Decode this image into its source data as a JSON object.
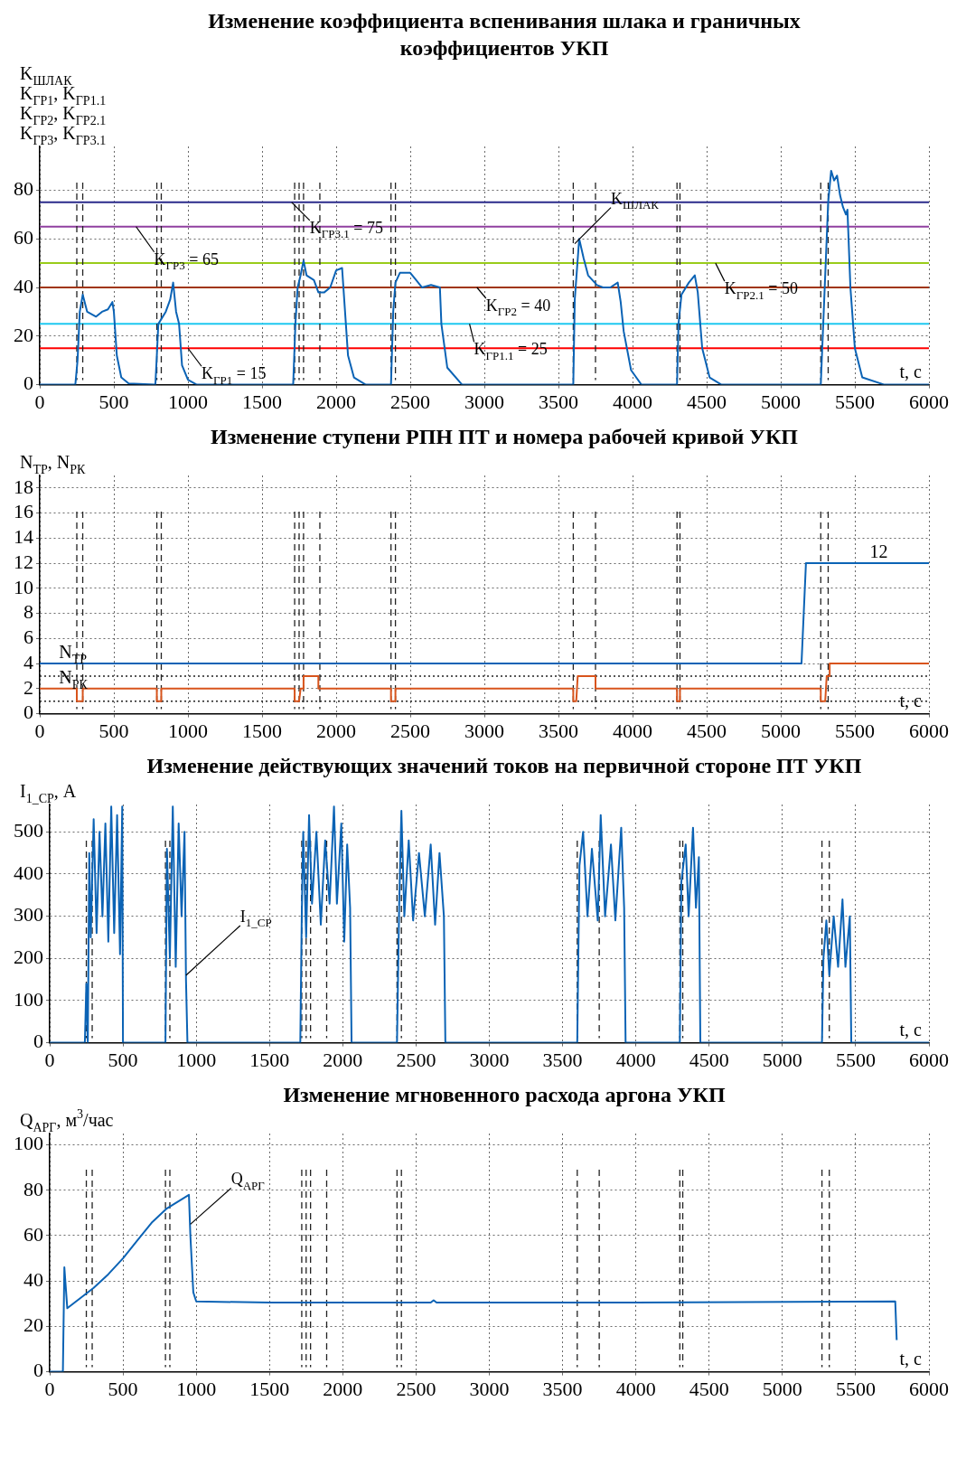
{
  "chart_data": [
    {
      "type": "line",
      "title": "Изменение коэффициента вспенивания шлака и граничных коэффициентов УКП",
      "ylabel": "K$_{ШЛАК}$\nK$_{ГР1}$, K$_{ГР1.1}$\nK$_{ГР2}$, K$_{ГР2.1}$\nK$_{ГР3}$, K$_{ГР3.1}$",
      "xlabel": "t, с",
      "xlim": [
        0,
        6000
      ],
      "xticks": [
        0,
        500,
        1000,
        1500,
        2000,
        2500,
        3000,
        3500,
        4000,
        4500,
        5000,
        5500,
        6000
      ],
      "ylim": [
        0,
        98
      ],
      "yticks": [
        0,
        20,
        40,
        60,
        80
      ],
      "grid": true,
      "series": [
        {
          "color": "#0b63b5",
          "x": [
            0,
            240,
            255,
            270,
            290,
            320,
            350,
            380,
            420,
            460,
            490,
            500,
            520,
            550,
            600,
            780,
            790,
            800,
            850,
            880,
            900,
            920,
            940,
            960,
            1000,
            1060,
            1710,
            1725,
            1740,
            1760,
            1780,
            1800,
            1850,
            1880,
            1920,
            1960,
            2000,
            2040,
            2060,
            2080,
            2120,
            2200,
            2370,
            2385,
            2400,
            2430,
            2500,
            2540,
            2580,
            2640,
            2700,
            2710,
            2750,
            2850,
            3600,
            3610,
            3640,
            3670,
            3700,
            3760,
            3800,
            3850,
            3900,
            3920,
            3940,
            3990,
            4060,
            4300,
            4310,
            4330,
            4380,
            4420,
            4440,
            4470,
            4520,
            4600,
            5270,
            5290,
            5320,
            5340,
            5360,
            5380,
            5400,
            5420,
            5440,
            5450,
            5470,
            5500,
            5550,
            5700,
            6000
          ],
          "values": [
            0,
            0,
            10,
            30,
            37,
            30,
            29,
            28,
            30,
            31,
            34,
            30,
            12,
            3,
            0.5,
            0,
            12,
            25,
            30,
            35,
            42,
            30,
            25,
            8,
            2,
            0,
            0,
            25,
            40,
            45,
            51,
            45,
            43,
            38,
            38,
            40,
            47,
            48,
            30,
            12,
            3,
            0,
            0,
            30,
            42,
            46,
            46,
            43,
            40,
            41,
            40,
            25,
            7,
            0,
            0,
            35,
            60,
            52,
            45,
            41,
            40,
            40,
            42,
            34,
            22,
            6,
            0,
            0,
            25,
            37,
            42,
            45,
            38,
            15,
            3,
            0,
            0,
            30,
            75,
            88,
            84,
            86,
            78,
            73,
            70,
            72,
            40,
            15,
            3,
            0,
            0
          ]
        }
      ],
      "ref_lines": [
        {
          "axis": "y",
          "value": 15,
          "color": "#ff0000"
        },
        {
          "axis": "y",
          "value": 25,
          "color": "#1ec8f0"
        },
        {
          "axis": "y",
          "value": 40,
          "color": "#a0350a"
        },
        {
          "axis": "y",
          "value": 50,
          "color": "#99cc1a"
        },
        {
          "axis": "y",
          "value": 65,
          "color": "#9040a0"
        },
        {
          "axis": "y",
          "value": 75,
          "color": "#2a2a8a"
        },
        {
          "axis": "x",
          "value": 250,
          "line_style": "dashed"
        },
        {
          "axis": "x",
          "value": 290,
          "line_style": "dashed"
        },
        {
          "axis": "x",
          "value": 790,
          "line_style": "dashed"
        },
        {
          "axis": "x",
          "value": 820,
          "line_style": "dashed"
        },
        {
          "axis": "x",
          "value": 1720,
          "line_style": "dashed"
        },
        {
          "axis": "x",
          "value": 1750,
          "line_style": "dashed"
        },
        {
          "axis": "x",
          "value": 1780,
          "line_style": "dashed"
        },
        {
          "axis": "x",
          "value": 1890,
          "line_style": "dashed"
        },
        {
          "axis": "x",
          "value": 2370,
          "line_style": "dashed"
        },
        {
          "axis": "x",
          "value": 2400,
          "line_style": "dashed"
        },
        {
          "axis": "x",
          "value": 3600,
          "line_style": "dashed"
        },
        {
          "axis": "x",
          "value": 3750,
          "line_style": "dashed"
        },
        {
          "axis": "x",
          "value": 4300,
          "line_style": "dashed"
        },
        {
          "axis": "x",
          "value": 4320,
          "line_style": "dashed"
        },
        {
          "axis": "x",
          "value": 5270,
          "line_style": "dashed"
        },
        {
          "axis": "x",
          "value": 5320,
          "line_style": "dashed"
        }
      ],
      "annotations": [
        {
          "text": "K$_{ГР3}$ = 65",
          "x": 650,
          "y": 65
        },
        {
          "text": "K$_{ГР3.1}$ = 75",
          "x": 1700,
          "y": 75
        },
        {
          "text": "K$_{ГР1}$ = 15",
          "x": 1000,
          "y": 15
        },
        {
          "text": "K$_{ГР1.1}$ = 25",
          "x": 2900,
          "y": 25
        },
        {
          "text": "K$_{ГР2}$ = 40",
          "x": 2950,
          "y": 40
        },
        {
          "text": "K$_{ГР2.1}$ = 50",
          "x": 4560,
          "y": 50
        },
        {
          "text": "K$_{ШЛАК}$",
          "x": 3610,
          "y": 58
        }
      ]
    },
    {
      "type": "line",
      "title": "Изменение ступени РПН ПТ и номера рабочей кривой УКП",
      "ylabel": "N$_{ТР}$, N$_{РК}$",
      "xlabel": "t, с",
      "xlim": [
        0,
        6000
      ],
      "xticks": [
        0,
        500,
        1000,
        1500,
        2000,
        2500,
        3000,
        3500,
        4000,
        4500,
        5000,
        5500,
        6000
      ],
      "ylim": [
        0,
        19
      ],
      "yticks": [
        0,
        2,
        4,
        6,
        8,
        10,
        12,
        14,
        16,
        18
      ],
      "grid": true,
      "series": [
        {
          "color": "#0b63b5",
          "x": [
            0,
            5140,
            5170,
            6000
          ],
          "values": [
            4,
            4,
            12,
            12
          ]
        },
        {
          "color": "#d8541c",
          "x": [
            0,
            250,
            250,
            290,
            290,
            790,
            790,
            820,
            820,
            1720,
            1720,
            1750,
            1760,
            1780,
            1780,
            1880,
            1880,
            2370,
            2370,
            2400,
            2400,
            3600,
            3600,
            3620,
            3630,
            3750,
            3750,
            4300,
            4300,
            4320,
            4320,
            5270,
            5270,
            5300,
            5310,
            5330,
            5330,
            6000
          ],
          "values": [
            2,
            2,
            1,
            1,
            2,
            2,
            1,
            1,
            2,
            2,
            1,
            1,
            2,
            2,
            3,
            3,
            2,
            2,
            1,
            1,
            2,
            2,
            1,
            1,
            3,
            3,
            2,
            2,
            1,
            1,
            2,
            2,
            1,
            1,
            3,
            3,
            4,
            4
          ]
        }
      ],
      "ref_lines": [
        {
          "axis": "y",
          "value": 3,
          "line_style": "dotted"
        },
        {
          "axis": "y",
          "value": 1,
          "line_style": "dotted"
        },
        {
          "axis": "x",
          "value": 250,
          "line_style": "dashed"
        },
        {
          "axis": "x",
          "value": 290,
          "line_style": "dashed"
        },
        {
          "axis": "x",
          "value": 790,
          "line_style": "dashed"
        },
        {
          "axis": "x",
          "value": 820,
          "line_style": "dashed"
        },
        {
          "axis": "x",
          "value": 1720,
          "line_style": "dashed"
        },
        {
          "axis": "x",
          "value": 1750,
          "line_style": "dashed"
        },
        {
          "axis": "x",
          "value": 1780,
          "line_style": "dashed"
        },
        {
          "axis": "x",
          "value": 1890,
          "line_style": "dashed"
        },
        {
          "axis": "x",
          "value": 2370,
          "line_style": "dashed"
        },
        {
          "axis": "x",
          "value": 2400,
          "line_style": "dashed"
        },
        {
          "axis": "x",
          "value": 3600,
          "line_style": "dashed"
        },
        {
          "axis": "x",
          "value": 3750,
          "line_style": "dashed"
        },
        {
          "axis": "x",
          "value": 4300,
          "line_style": "dashed"
        },
        {
          "axis": "x",
          "value": 4320,
          "line_style": "dashed"
        },
        {
          "axis": "x",
          "value": 5270,
          "line_style": "dashed"
        },
        {
          "axis": "x",
          "value": 5320,
          "line_style": "dashed"
        }
      ],
      "annotations": [
        {
          "text": "N$_{ТР}$",
          "x": 130,
          "y": 4
        },
        {
          "text": "N$_{РК}$",
          "x": 130,
          "y": 2
        },
        {
          "text": "12",
          "x": 5600,
          "y": 12
        }
      ]
    },
    {
      "type": "line",
      "title": "Изменение действующих значений токов на первичной стороне ПТ УКП",
      "ylabel": "I$_{1_СР}$, А",
      "xlabel": "t, с",
      "xlim": [
        0,
        6000
      ],
      "xticks": [
        0,
        500,
        1000,
        1500,
        2000,
        2500,
        3000,
        3500,
        4000,
        4500,
        5000,
        5500,
        6000
      ],
      "ylim": [
        0,
        565
      ],
      "yticks": [
        0,
        100,
        200,
        300,
        400,
        500
      ],
      "grid": true,
      "series": [
        {
          "color": "#0b63b5",
          "x": [
            0,
            240,
            250,
            260,
            270,
            280,
            300,
            320,
            340,
            360,
            380,
            400,
            420,
            440,
            460,
            480,
            495,
            500,
            790,
            800,
            820,
            840,
            860,
            880,
            900,
            920,
            930,
            940,
            1710,
            1720,
            1730,
            1750,
            1770,
            1790,
            1820,
            1850,
            1880,
            1910,
            1940,
            1960,
            1990,
            2010,
            2030,
            2050,
            2060,
            2370,
            2385,
            2400,
            2420,
            2450,
            2480,
            2520,
            2560,
            2600,
            2630,
            2660,
            2690,
            2700,
            3600,
            3615,
            3640,
            3670,
            3700,
            3740,
            3760,
            3790,
            3830,
            3860,
            3900,
            3920,
            3930,
            4300,
            4310,
            4340,
            4360,
            4390,
            4410,
            4430,
            4440,
            5270,
            5280,
            5300,
            5320,
            5350,
            5380,
            5410,
            5430,
            5460,
            5470,
            6000
          ],
          "values": [
            0,
            0,
            140,
            0,
            450,
            250,
            530,
            260,
            500,
            300,
            520,
            240,
            560,
            260,
            540,
            210,
            560,
            0,
            0,
            460,
            200,
            560,
            180,
            520,
            300,
            500,
            150,
            0,
            0,
            300,
            500,
            250,
            540,
            330,
            500,
            280,
            480,
            330,
            560,
            330,
            520,
            240,
            470,
            320,
            0,
            0,
            330,
            550,
            300,
            480,
            290,
            450,
            300,
            470,
            280,
            450,
            300,
            0,
            0,
            420,
            500,
            300,
            460,
            290,
            540,
            300,
            470,
            290,
            510,
            320,
            0,
            0,
            380,
            470,
            300,
            510,
            320,
            440,
            0,
            0,
            200,
            290,
            160,
            300,
            180,
            340,
            180,
            300,
            0,
            0
          ]
        }
      ],
      "ref_lines": [
        {
          "axis": "x",
          "value": 250,
          "line_style": "dashed"
        },
        {
          "axis": "x",
          "value": 290,
          "line_style": "dashed"
        },
        {
          "axis": "x",
          "value": 790,
          "line_style": "dashed"
        },
        {
          "axis": "x",
          "value": 820,
          "line_style": "dashed"
        },
        {
          "axis": "x",
          "value": 1720,
          "line_style": "dashed"
        },
        {
          "axis": "x",
          "value": 1750,
          "line_style": "dashed"
        },
        {
          "axis": "x",
          "value": 1780,
          "line_style": "dashed"
        },
        {
          "axis": "x",
          "value": 1890,
          "line_style": "dashed"
        },
        {
          "axis": "x",
          "value": 2370,
          "line_style": "dashed"
        },
        {
          "axis": "x",
          "value": 2400,
          "line_style": "dashed"
        },
        {
          "axis": "x",
          "value": 3600,
          "line_style": "dashed"
        },
        {
          "axis": "x",
          "value": 3750,
          "line_style": "dashed"
        },
        {
          "axis": "x",
          "value": 4300,
          "line_style": "dashed"
        },
        {
          "axis": "x",
          "value": 4320,
          "line_style": "dashed"
        },
        {
          "axis": "x",
          "value": 5270,
          "line_style": "dashed"
        },
        {
          "axis": "x",
          "value": 5320,
          "line_style": "dashed"
        }
      ],
      "annotations": [
        {
          "text": "I$_{1_СР}$",
          "x": 930,
          "y": 160
        }
      ]
    },
    {
      "type": "line",
      "title": "Изменение мгновенного расхода аргона УКП",
      "ylabel": "Q$_{АРГ}$, м$^{3}$/час",
      "xlabel": "t, с",
      "xlim": [
        0,
        6000
      ],
      "xticks": [
        0,
        500,
        1000,
        1500,
        2000,
        2500,
        3000,
        3500,
        4000,
        4500,
        5000,
        5500,
        6000
      ],
      "ylim": [
        0,
        105
      ],
      "yticks": [
        0,
        20,
        40,
        60,
        80,
        100
      ],
      "grid": true,
      "series": [
        {
          "color": "#0b63b5",
          "x": [
            0,
            90,
            100,
            120,
            200,
            300,
            400,
            500,
            600,
            700,
            800,
            900,
            950,
            960,
            980,
            1000,
            1500,
            2600,
            2620,
            2640,
            4000,
            5770,
            5780
          ],
          "values": [
            0,
            0,
            46,
            28,
            32,
            37,
            43,
            50,
            58,
            66,
            72,
            76,
            78,
            60,
            35,
            31,
            30.5,
            30.5,
            31.5,
            30.5,
            30.5,
            31,
            14
          ]
        }
      ],
      "ref_lines": [
        {
          "axis": "x",
          "value": 250,
          "line_style": "dashed"
        },
        {
          "axis": "x",
          "value": 290,
          "line_style": "dashed"
        },
        {
          "axis": "x",
          "value": 790,
          "line_style": "dashed"
        },
        {
          "axis": "x",
          "value": 820,
          "line_style": "dashed"
        },
        {
          "axis": "x",
          "value": 1720,
          "line_style": "dashed"
        },
        {
          "axis": "x",
          "value": 1750,
          "line_style": "dashed"
        },
        {
          "axis": "x",
          "value": 1780,
          "line_style": "dashed"
        },
        {
          "axis": "x",
          "value": 1890,
          "line_style": "dashed"
        },
        {
          "axis": "x",
          "value": 2370,
          "line_style": "dashed"
        },
        {
          "axis": "x",
          "value": 2400,
          "line_style": "dashed"
        },
        {
          "axis": "x",
          "value": 3600,
          "line_style": "dashed"
        },
        {
          "axis": "x",
          "value": 3750,
          "line_style": "dashed"
        },
        {
          "axis": "x",
          "value": 4300,
          "line_style": "dashed"
        },
        {
          "axis": "x",
          "value": 4320,
          "line_style": "dashed"
        },
        {
          "axis": "x",
          "value": 5270,
          "line_style": "dashed"
        },
        {
          "axis": "x",
          "value": 5320,
          "line_style": "dashed"
        }
      ],
      "annotations": [
        {
          "text": "Q$_{АРГ}$",
          "x": 960,
          "y": 65
        }
      ]
    }
  ]
}
